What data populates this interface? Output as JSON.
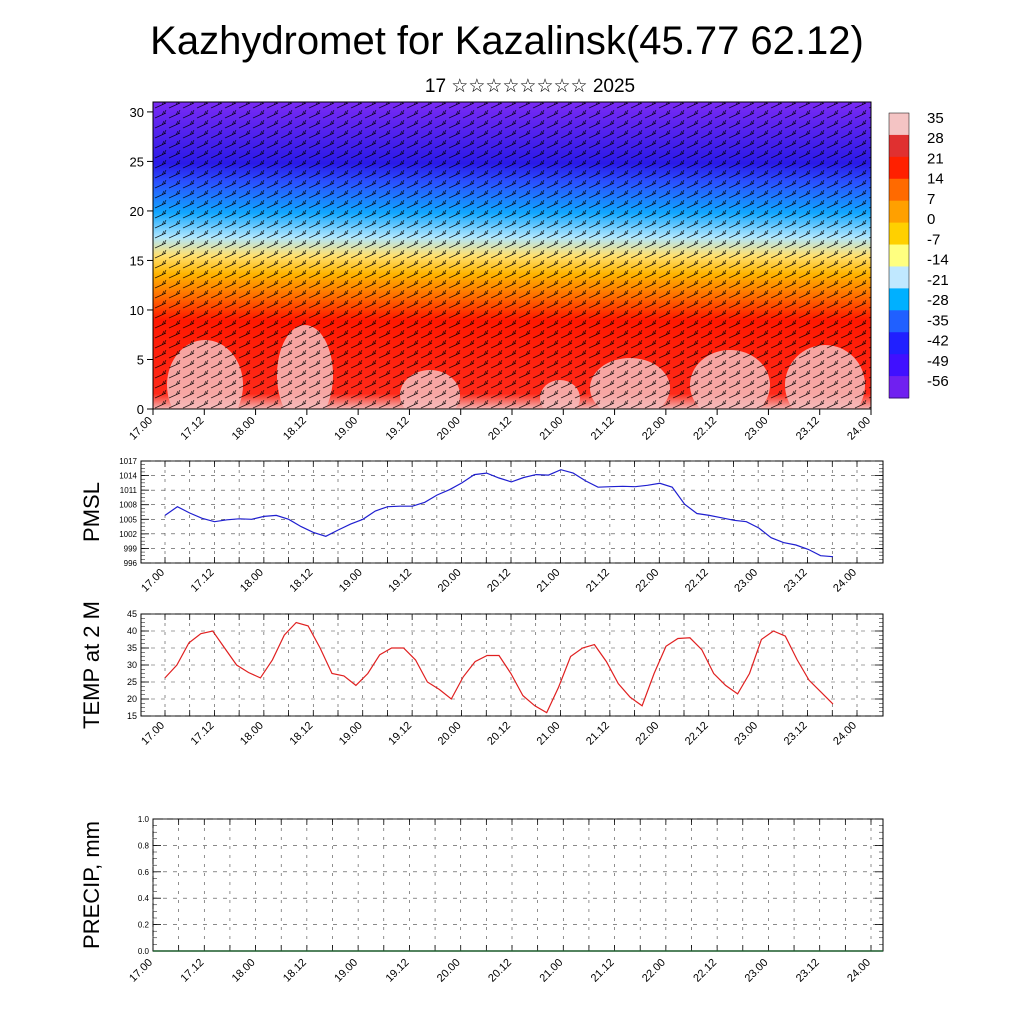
{
  "header": {
    "title": "Kazhydromet for Kazalinsk(45.77 62.12)",
    "subtitle": "17 ☆☆☆☆☆☆☆☆ 2025"
  },
  "chart_data": [
    {
      "type": "heatmap",
      "name": "cross-section",
      "x_ticks": [
        "17.00",
        "17.12",
        "18.00",
        "18.12",
        "19.00",
        "19.12",
        "20.00",
        "20.12",
        "21.00",
        "21.12",
        "22.00",
        "22.12",
        "23.00",
        "23.12",
        "24.00"
      ],
      "y_ticks": [
        "0",
        "5",
        "10",
        "15",
        "20",
        "25",
        "30"
      ],
      "ylim": [
        0,
        31
      ],
      "colorbar": {
        "labels": [
          "35",
          "28",
          "21",
          "14",
          "7",
          "0",
          "-7",
          "-14",
          "-21",
          "-28",
          "-35",
          "-42",
          "-49",
          "-56"
        ],
        "colors": [
          "#f4c4c4",
          "#e03030",
          "#ff2000",
          "#ff6a00",
          "#ffa000",
          "#ffd000",
          "#ffff80",
          "#c0e8ff",
          "#00b0ff",
          "#2060ff",
          "#2020ff",
          "#4010ff",
          "#7020f0"
        ]
      },
      "overlay": "wind barbs"
    },
    {
      "type": "line",
      "name": "pmsl",
      "ylabel": "PMSL",
      "ylim": [
        996,
        1017
      ],
      "y_ticks": [
        "996",
        "999",
        "1002",
        "1005",
        "1008",
        "1011",
        "1014",
        "1017"
      ],
      "x_ticks": [
        "17.00",
        "17.12",
        "18.00",
        "18.12",
        "19.00",
        "19.12",
        "20.00",
        "20.12",
        "21.00",
        "21.12",
        "22.00",
        "22.12",
        "23.00",
        "23.12",
        "24.00"
      ],
      "color": "#1f1fd0",
      "values": [
        1005.8,
        1007.6,
        1006.3,
        1005.2,
        1004.5,
        1004.9,
        1005.1,
        1005.0,
        1005.6,
        1005.8,
        1005.0,
        1003.5,
        1002.3,
        1001.5,
        1002.8,
        1004.0,
        1005.0,
        1006.7,
        1007.6,
        1007.7,
        1007.7,
        1008.5,
        1010.0,
        1011.1,
        1012.5,
        1014.2,
        1014.5,
        1013.5,
        1012.7,
        1013.6,
        1014.2,
        1014.1,
        1015.2,
        1014.5,
        1012.9,
        1011.6,
        1011.7,
        1011.8,
        1011.7,
        1012.0,
        1012.4,
        1011.6,
        1008.1,
        1006.2,
        1005.8,
        1005.3,
        1004.8,
        1004.5,
        1003.2,
        1001.2,
        1000.2,
        999.7,
        998.8,
        997.5,
        997.3
      ]
    },
    {
      "type": "line",
      "name": "temp2m",
      "ylabel": "TEMP at 2 M",
      "ylim": [
        15,
        45
      ],
      "y_ticks": [
        "15",
        "20",
        "25",
        "30",
        "35",
        "40",
        "45"
      ],
      "x_ticks": [
        "17.00",
        "17.12",
        "18.00",
        "18.12",
        "19.00",
        "19.12",
        "20.00",
        "20.12",
        "21.00",
        "21.12",
        "22.00",
        "22.12",
        "23.00",
        "23.12",
        "24.00"
      ],
      "color": "#e02020",
      "values": [
        26.2,
        30.0,
        36.5,
        39.2,
        40.0,
        35.0,
        30.0,
        27.8,
        26.2,
        31.5,
        38.8,
        42.5,
        41.5,
        35.0,
        27.5,
        26.8,
        24.0,
        27.5,
        33.0,
        35.0,
        35.0,
        31.5,
        25.0,
        22.8,
        20.0,
        26.5,
        31.0,
        32.8,
        32.8,
        27.5,
        21.0,
        18.0,
        16.0,
        23.5,
        32.5,
        35.0,
        36.0,
        31.0,
        24.5,
        20.5,
        18.0,
        27.5,
        35.5,
        37.8,
        38.0,
        34.5,
        27.5,
        24.0,
        21.5,
        27.5,
        37.5,
        40.0,
        38.5,
        31.5,
        25.5,
        22.0,
        18.5
      ]
    },
    {
      "type": "bar",
      "name": "precip",
      "ylabel": "PRECIP, mm",
      "ylim": [
        0,
        1
      ],
      "y_ticks": [
        "0.0",
        "0.2",
        "0.4",
        "0.6",
        "0.8",
        "1.0"
      ],
      "x_ticks": [
        "17.00",
        "17.12",
        "18.00",
        "18.12",
        "19.00",
        "19.12",
        "20.00",
        "20.12",
        "21.00",
        "21.12",
        "22.00",
        "22.12",
        "23.00",
        "23.12",
        "24.00"
      ],
      "values": [
        0,
        0,
        0,
        0,
        0,
        0,
        0,
        0,
        0,
        0,
        0,
        0,
        0,
        0,
        0,
        0,
        0,
        0,
        0,
        0,
        0,
        0,
        0,
        0,
        0,
        0,
        0,
        0,
        0,
        0,
        0,
        0,
        0,
        0,
        0,
        0,
        0,
        0,
        0,
        0,
        0,
        0,
        0,
        0,
        0,
        0,
        0,
        0,
        0,
        0,
        0,
        0,
        0,
        0,
        0,
        0,
        0
      ]
    }
  ]
}
